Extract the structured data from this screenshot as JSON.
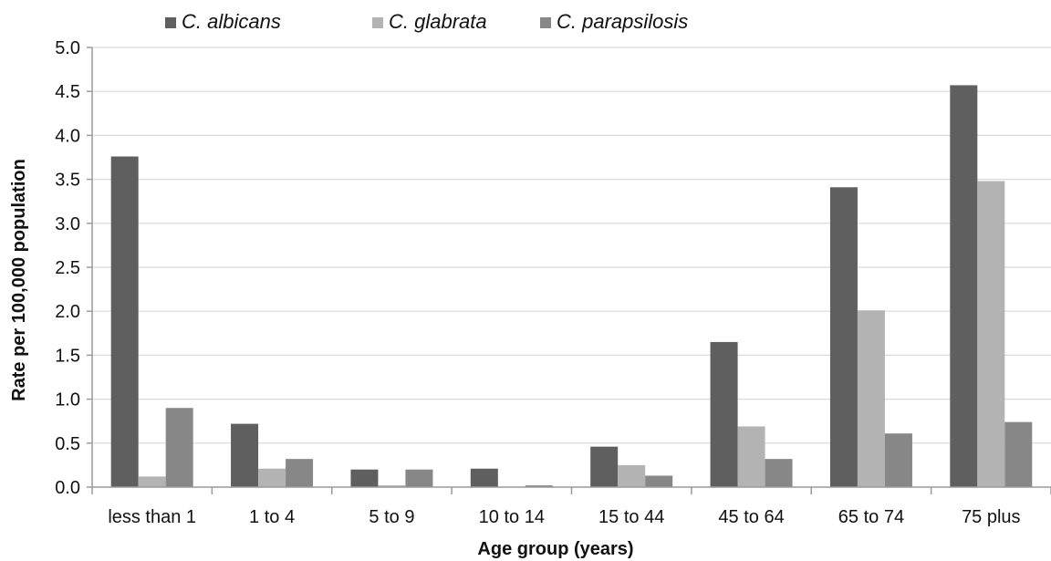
{
  "chart_data": {
    "type": "bar",
    "title": "",
    "xlabel": "Age group (years)",
    "ylabel": "Rate per 100,000 population",
    "ylim": [
      0,
      5.0
    ],
    "yticks": [
      "0.0",
      "0.5",
      "1.0",
      "1.5",
      "2.0",
      "2.5",
      "3.0",
      "3.5",
      "4.0",
      "4.5",
      "5.0"
    ],
    "grid": "horizontal",
    "legend_position": "top",
    "categories": [
      "less than 1",
      "1 to 4",
      "5 to 9",
      "10 to 14",
      "15 to 44",
      "45 to 64",
      "65 to 74",
      "75 plus"
    ],
    "series": [
      {
        "name": "C. albicans",
        "color": "#5f5f5f",
        "values": [
          3.76,
          0.72,
          0.2,
          0.21,
          0.46,
          1.65,
          3.41,
          4.57
        ]
      },
      {
        "name": "C. glabrata",
        "color": "#b3b3b3",
        "values": [
          0.12,
          0.21,
          0.02,
          0.0,
          0.25,
          0.69,
          2.01,
          3.48
        ]
      },
      {
        "name": "C. parapsilosis",
        "color": "#878787",
        "values": [
          0.9,
          0.32,
          0.2,
          0.02,
          0.13,
          0.32,
          0.61,
          0.74
        ]
      }
    ]
  }
}
